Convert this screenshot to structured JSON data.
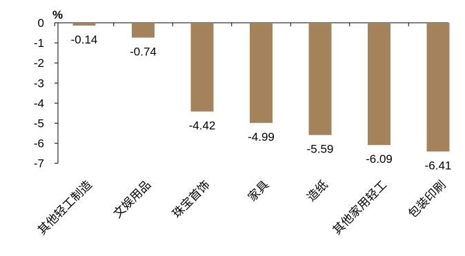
{
  "chart_data": {
    "type": "bar",
    "unit_label": "%",
    "categories": [
      "其他轻工制造",
      "文娱用品",
      "珠宝首饰",
      "家具",
      "造纸",
      "其他家用轻工",
      "包装印刷"
    ],
    "series": [
      {
        "values": [
          -0.14,
          -0.74,
          -4.42,
          -4.99,
          -5.59,
          -6.09,
          -6.41
        ]
      }
    ],
    "data_labels": [
      "-0.14",
      "-0.74",
      "-4.42",
      "-4.99",
      "-5.59",
      "-6.09",
      "-6.41"
    ],
    "ylim": [
      -7,
      0
    ],
    "yticks": [
      0,
      -1,
      -2,
      -3,
      -4,
      -5,
      -6,
      -7
    ],
    "grid": false,
    "legend": "none",
    "bar_color": "#a5835a",
    "axis_color": "#000000"
  }
}
